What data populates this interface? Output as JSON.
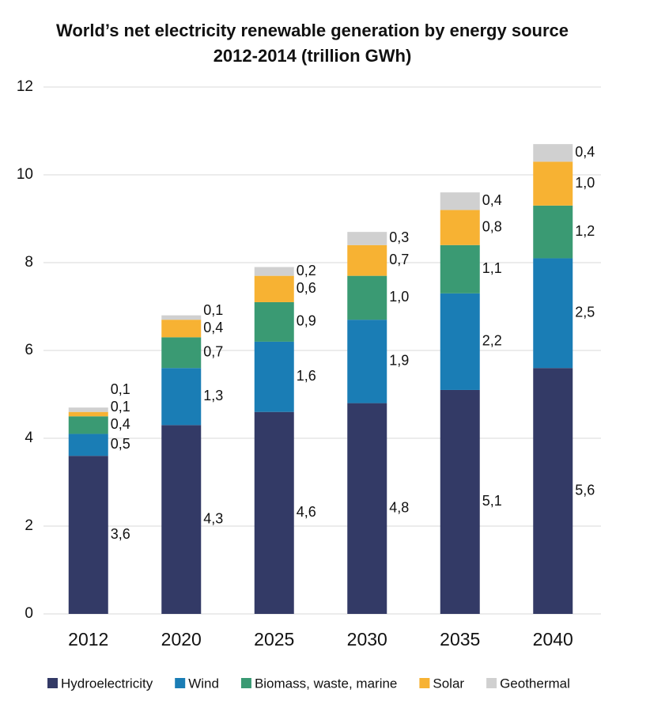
{
  "chart_data": {
    "type": "stacked-bar",
    "title": "World’s net electricity renewable generation by energy source",
    "subtitle": "2012-2014 (trillion GWh)",
    "categories": [
      "2012",
      "2020",
      "2025",
      "2030",
      "2035",
      "2040"
    ],
    "series": [
      {
        "name": "Hydroelectricity",
        "color": "#333a66",
        "values": [
          3.6,
          4.3,
          4.6,
          4.8,
          5.1,
          5.6
        ],
        "value_labels": [
          "3,6",
          "4,3",
          "4,6",
          "4,8",
          "5,1",
          "5,6"
        ]
      },
      {
        "name": "Wind",
        "color": "#1a7db5",
        "values": [
          0.5,
          1.3,
          1.6,
          1.9,
          2.2,
          2.5
        ],
        "value_labels": [
          "0,5",
          "1,3",
          "1,6",
          "1,9",
          "2,2",
          "2,5"
        ]
      },
      {
        "name": "Biomass, waste, marine",
        "color": "#3a9a73",
        "values": [
          0.4,
          0.7,
          0.9,
          1.0,
          1.1,
          1.2
        ],
        "value_labels": [
          "0,4",
          "0,7",
          "0,9",
          "1,0",
          "1,1",
          "1,2"
        ]
      },
      {
        "name": "Solar",
        "color": "#f7b233",
        "values": [
          0.1,
          0.4,
          0.6,
          0.7,
          0.8,
          1.0
        ],
        "value_labels": [
          "0,1",
          "0,4",
          "0,6",
          "0,7",
          "0,8",
          "1,0"
        ]
      },
      {
        "name": "Geothermal",
        "color": "#d0d0d0",
        "values": [
          0.1,
          0.1,
          0.2,
          0.3,
          0.4,
          0.4
        ],
        "value_labels": [
          "0,1",
          "0,1",
          "0,2",
          "0,3",
          "0,4",
          "0,4"
        ]
      }
    ],
    "ylim": [
      0,
      12
    ],
    "yticks": [
      0,
      2,
      4,
      6,
      8,
      10,
      12
    ],
    "grid": true,
    "legend": "bottom"
  }
}
